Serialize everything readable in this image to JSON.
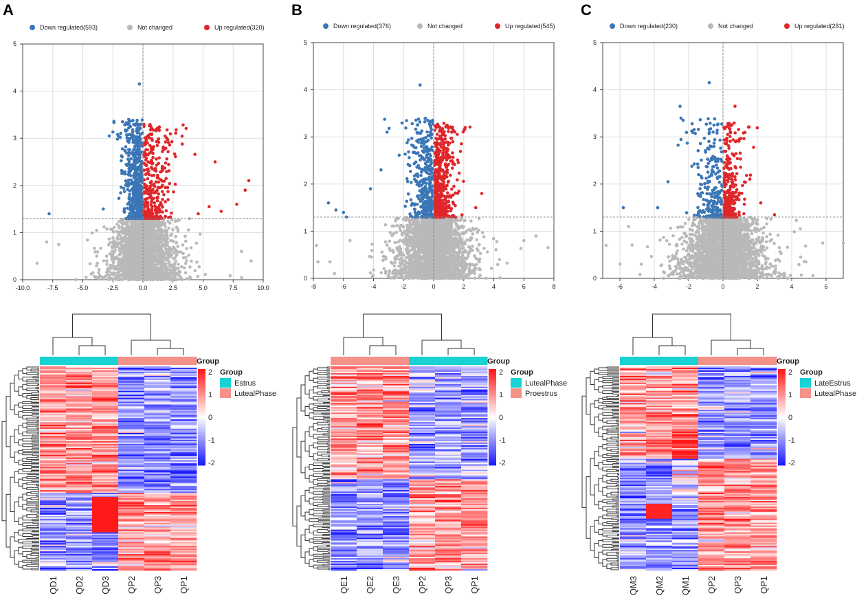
{
  "colors": {
    "down": "#3b76b6",
    "notchanged": "#b9b9b9",
    "up": "#e0262a",
    "group_cyan": "#19d2d4",
    "group_salmon": "#f4928a",
    "grid": "#dddddd",
    "threshold": "#888888",
    "heat_low": "#1a1aff",
    "heat_mid": "#ffffff",
    "heat_high": "#ff1a1a"
  },
  "panels": [
    {
      "letter": "A",
      "legend": {
        "down": "Down regulated(593)",
        "notchanged": "Not changed",
        "up": "Up regulated(320)"
      },
      "volcano": {
        "type": "scatter",
        "xlim": [
          -10,
          10
        ],
        "ylim": [
          0,
          5
        ],
        "xticks": [
          "-10.0",
          "-7.5",
          "-5.0",
          "-2.5",
          "0.0",
          "2.5",
          "5.0",
          "7.5",
          "10.0"
        ],
        "xtick_values": [
          -10,
          -7.5,
          -5,
          -2.5,
          0,
          2.5,
          5,
          7.5,
          10
        ],
        "yticks": [
          "0",
          "1",
          "2",
          "3",
          "4",
          "5"
        ],
        "threshold_y": 1.3,
        "down_count": 593,
        "up_count": 320,
        "spread_down": 1.0,
        "spread_up": 1.6,
        "spread_nc": 1.3,
        "top_point": [
          -0.3,
          4.15
        ],
        "outliers_down": [
          [
            -2.8,
            3.05
          ],
          [
            -7.8,
            1.4
          ],
          [
            -3.3,
            1.5
          ]
        ],
        "outliers_up": [
          [
            6.0,
            2.5
          ],
          [
            8.8,
            2.1
          ],
          [
            8.5,
            1.9
          ],
          [
            7.8,
            1.6
          ],
          [
            6.5,
            1.45
          ],
          [
            4.6,
            1.4
          ],
          [
            5.5,
            1.55
          ]
        ],
        "outliers_nc": [
          [
            -7.0,
            0.75
          ],
          [
            -8.0,
            0.8
          ],
          [
            -8.8,
            0.35
          ],
          [
            -3.8,
            0.35
          ],
          [
            9.0,
            0.4
          ],
          [
            8.2,
            0.6
          ]
        ],
        "seed": 11
      },
      "heatmap": {
        "columns": [
          "QD1",
          "QD2",
          "QD3",
          "QP2",
          "QP3",
          "QP1"
        ],
        "groups": [
          "Estrus",
          "Estrus",
          "Estrus",
          "LutealPhase",
          "LutealPhase",
          "LutealPhase"
        ],
        "group_colors": [
          "#19d2d4",
          "#19d2d4",
          "#19d2d4",
          "#f4928a",
          "#f4928a",
          "#f4928a"
        ],
        "legend_title": "Group",
        "legend_items": [
          {
            "label": "Estrus",
            "color": "#19d2d4"
          },
          {
            "label": "LutealPhase",
            "color": "#f4928a"
          }
        ],
        "colorbar_label": "Group",
        "colorbar_ticks": [
          "2",
          "1",
          "0",
          "-1",
          "-2"
        ],
        "block_split": 0.62,
        "seed": 21
      }
    },
    {
      "letter": "B",
      "legend": {
        "down": "Down regulated(376)",
        "notchanged": "Not changed",
        "up": "Up regulated(545)"
      },
      "volcano": {
        "type": "scatter",
        "xlim": [
          -8,
          8
        ],
        "ylim": [
          0,
          5
        ],
        "xticks": [
          "-8",
          "-6",
          "-4",
          "-2",
          "0",
          "2",
          "4",
          "6",
          "8"
        ],
        "xtick_values": [
          -8,
          -6,
          -4,
          -2,
          0,
          2,
          4,
          6,
          8
        ],
        "yticks": [
          "0",
          "1",
          "2",
          "3",
          "4",
          "5"
        ],
        "threshold_y": 1.3,
        "down_count": 376,
        "up_count": 545,
        "spread_down": 1.0,
        "spread_up": 0.9,
        "spread_nc": 1.2,
        "top_point": [
          -0.9,
          4.1
        ],
        "outliers_down": [
          [
            -7.0,
            1.6
          ],
          [
            -6.5,
            1.45
          ],
          [
            -3.1,
            3.1
          ],
          [
            -4.2,
            1.9
          ],
          [
            -6.0,
            1.4
          ],
          [
            -5.8,
            1.3
          ],
          [
            -3.5,
            2.3
          ]
        ],
        "outliers_up": [
          [
            2.1,
            3.2
          ],
          [
            3.2,
            1.8
          ],
          [
            2.8,
            1.5
          ],
          [
            1.2,
            3.1
          ]
        ],
        "outliers_nc": [
          [
            -7.8,
            0.7
          ],
          [
            -7.7,
            0.35
          ],
          [
            -6.9,
            0.35
          ],
          [
            6.0,
            0.8
          ],
          [
            7.6,
            0.65
          ],
          [
            6.8,
            0.9
          ]
        ],
        "seed": 12
      },
      "heatmap": {
        "columns": [
          "QE1",
          "QE2",
          "QE3",
          "QP2",
          "QP3",
          "QP1"
        ],
        "groups": [
          "Proestrus",
          "Proestrus",
          "Proestrus",
          "LutealPhase",
          "LutealPhase",
          "LutealPhase"
        ],
        "group_colors": [
          "#f4928a",
          "#f4928a",
          "#f4928a",
          "#19d2d4",
          "#19d2d4",
          "#19d2d4"
        ],
        "legend_title": "Group",
        "legend_items": [
          {
            "label": "LutealPhase",
            "color": "#19d2d4"
          },
          {
            "label": "Proestrus",
            "color": "#f4928a"
          }
        ],
        "colorbar_label": "Group",
        "colorbar_ticks": [
          "2",
          "1",
          "0",
          "-1",
          "-2"
        ],
        "block_split": 0.55,
        "seed": 22
      }
    },
    {
      "letter": "C",
      "legend": {
        "down": "Down regulated(230)",
        "notchanged": "Not changed",
        "up": "Up regulated(281)"
      },
      "volcano": {
        "type": "scatter",
        "xlim": [
          -7,
          7
        ],
        "ylim": [
          0,
          5
        ],
        "xticks": [
          "-6",
          "-4",
          "-2",
          "0",
          "2",
          "4",
          "6"
        ],
        "xtick_values": [
          -6,
          -4,
          -2,
          0,
          2,
          4,
          6
        ],
        "yticks": [
          "0",
          "1",
          "2",
          "3",
          "4",
          "5"
        ],
        "threshold_y": 1.3,
        "down_count": 230,
        "up_count": 281,
        "spread_down": 1.1,
        "spread_up": 0.8,
        "spread_nc": 1.2,
        "top_point": [
          -0.8,
          4.15
        ],
        "outliers_down": [
          [
            -2.5,
            3.65
          ],
          [
            -5.8,
            1.5
          ],
          [
            -3.2,
            2.05
          ],
          [
            -3.8,
            1.5
          ]
        ],
        "outliers_up": [
          [
            0.7,
            3.65
          ],
          [
            3.0,
            1.35
          ],
          [
            2.2,
            1.6
          ]
        ],
        "outliers_nc": [
          [
            -6.8,
            0.7
          ],
          [
            -6.0,
            0.3
          ],
          [
            -5.5,
            1.1
          ],
          [
            5.8,
            0.75
          ],
          [
            7.0,
            0.75
          ],
          [
            4.5,
            1.05
          ]
        ],
        "seed": 13
      },
      "heatmap": {
        "columns": [
          "QM3",
          "QM2",
          "QM1",
          "QP2",
          "QP3",
          "QP1"
        ],
        "groups": [
          "LateEstrus",
          "LateEstrus",
          "LateEstrus",
          "LutealPhase",
          "LutealPhase",
          "LutealPhase"
        ],
        "group_colors": [
          "#19d2d4",
          "#19d2d4",
          "#19d2d4",
          "#f4928a",
          "#f4928a",
          "#f4928a"
        ],
        "legend_title": "Group",
        "legend_items": [
          {
            "label": "LateEstrus",
            "color": "#19d2d4"
          },
          {
            "label": "LutealPhase",
            "color": "#f4928a"
          }
        ],
        "colorbar_label": "Group",
        "colorbar_ticks": [
          "2",
          "1",
          "0",
          "-1",
          "-2"
        ],
        "block_split": 0.45,
        "seed": 23
      }
    }
  ]
}
